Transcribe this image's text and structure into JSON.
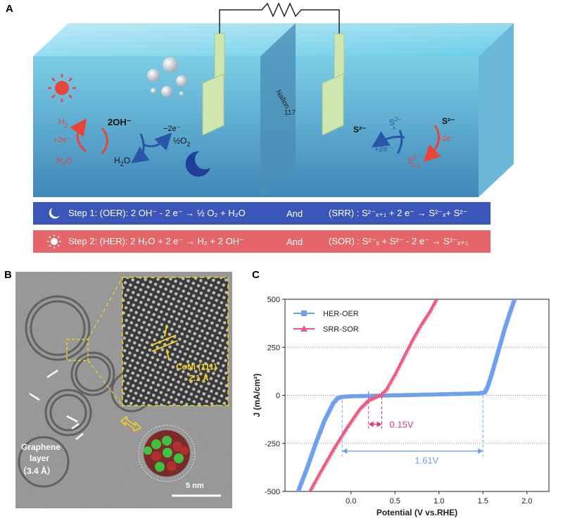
{
  "panels": {
    "a": "A",
    "b": "B",
    "c": "C"
  },
  "panel_a": {
    "membrane_name": "Nafion",
    "membrane_number": "117",
    "left_cycle": {
      "h2": "H",
      "h2_sub": "2",
      "plus_2e": "+2e⁻",
      "h2o_left": "H",
      "h2o_left_sub": "2",
      "h2o_left_end": "O",
      "two_oh": "2OH⁻",
      "minus_2e": "−2e⁻",
      "half_o2": "½O",
      "half_o2_sub": "2",
      "h2o_right": "H",
      "h2o_right_sub": "2",
      "h2o_right_end": "O"
    },
    "right_cycle": {
      "s2_left": "S²⁻",
      "sx": "S",
      "sx_sup": "2−",
      "sx_sub": "x",
      "s2_right": "S²⁻",
      "plus_2e": "+2e⁻",
      "minus_2e": "−2e⁻",
      "sx1": "S",
      "sx1_sup": "2−",
      "sx1_sub": "x+1"
    },
    "step1": {
      "text": "Step 1: (OER): 2 OH⁻ - 2 e⁻ → ½ O₂ + H₂O",
      "and": "And",
      "rhs": "(SRR) : S²⁻ₓ₊₁ + 2 e⁻ → S²⁻ₓ+ S²⁻"
    },
    "step2": {
      "text": "Step 2: (HER): 2 H₂O + 2 e⁻ → H₂ + 2 OH⁻",
      "and": "And",
      "rhs": "(SOR) : S²⁻ₓ + S²⁻ - 2 e⁻ → S²⁻ₓ₊₁"
    },
    "colors": {
      "blue": "#3a56b8",
      "red": "#e05a5a"
    }
  },
  "panel_b": {
    "lattice_label": "CoNi (111)",
    "lattice_spacing": "2.1 Å",
    "graphene_label_1": "Graphene",
    "graphene_label_2": "layer",
    "graphene_spacing": "（3.4 Å）",
    "scale_bar": "5 nm"
  },
  "chart_data": {
    "type": "line",
    "xlabel": "Potential (V vs.RHE)",
    "ylabel": "J (mA/cm²)",
    "xlim": [
      -0.75,
      2.25
    ],
    "ylim": [
      -500,
      500
    ],
    "x_ticks": [
      "0.0",
      "0.5",
      "1.0",
      "1.5",
      "2.0"
    ],
    "y_ticks": [
      "-500",
      "-250",
      "0",
      "250",
      "500"
    ],
    "y_tick_values": [
      -500,
      -250,
      0,
      250,
      500
    ],
    "x_tick_values": [
      0,
      0.5,
      1.0,
      1.5,
      2.0
    ],
    "grid": "horizontal-dotted",
    "legend_position": "top-left",
    "series": [
      {
        "name": "HER-OER",
        "color": "#6fa0f0",
        "marker": "square",
        "x": [
          -0.6,
          -0.5,
          -0.4,
          -0.3,
          -0.2,
          -0.15,
          -0.1,
          0.0,
          0.5,
          1.0,
          1.45,
          1.52,
          1.55,
          1.6,
          1.65,
          1.7,
          1.75,
          1.8,
          1.86
        ],
        "y": [
          -500,
          -380,
          -250,
          -130,
          -40,
          -15,
          -8,
          -5,
          0,
          5,
          10,
          15,
          40,
          110,
          190,
          270,
          350,
          420,
          500
        ]
      },
      {
        "name": "SRR-SOR",
        "color": "#f05a80",
        "marker": "triangle",
        "x": [
          -0.47,
          -0.35,
          -0.2,
          -0.05,
          0.1,
          0.2,
          0.3,
          0.35,
          0.4,
          0.5,
          0.6,
          0.7,
          0.8,
          0.9,
          0.97
        ],
        "y": [
          -500,
          -400,
          -280,
          -170,
          -70,
          -25,
          -5,
          5,
          30,
          110,
          200,
          290,
          370,
          440,
          500
        ]
      }
    ],
    "annotations": [
      {
        "text": "0.15V",
        "color": "#e03a70",
        "x_from": 0.2,
        "x_to": 0.35,
        "y": -150
      },
      {
        "text": "1.61V",
        "color": "#6fa0f0",
        "x_from": -0.1,
        "x_to": 1.5,
        "y": -290
      }
    ]
  }
}
